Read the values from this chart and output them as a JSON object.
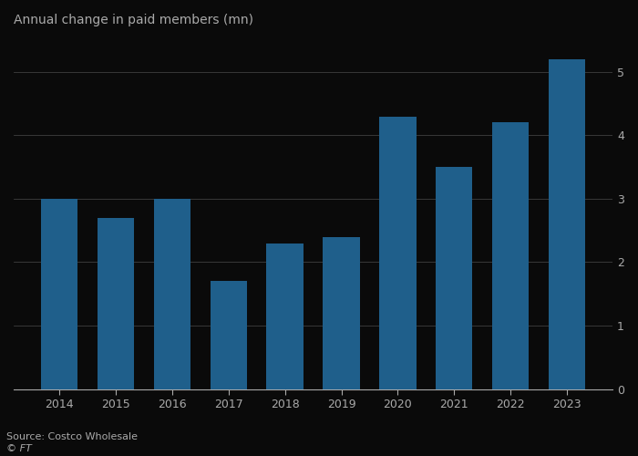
{
  "years": [
    "2014",
    "2015",
    "2016",
    "2017",
    "2018",
    "2019",
    "2020",
    "2021",
    "2022",
    "2023"
  ],
  "values": [
    3.0,
    2.7,
    3.0,
    1.7,
    2.3,
    2.4,
    4.3,
    3.5,
    4.2,
    5.2
  ],
  "bar_color": "#1f5f8b",
  "title": "Annual change in paid members (mn)",
  "ylim": [
    0,
    5.6
  ],
  "yticks": [
    0,
    1,
    2,
    3,
    4,
    5
  ],
  "source": "Source: Costco Wholesale",
  "footer": "© FT",
  "background_color": "#0a0a0a",
  "grid_color": "#555555",
  "text_color": "#aaaaaa",
  "title_color": "#aaaaaa",
  "bar_width": 0.65
}
